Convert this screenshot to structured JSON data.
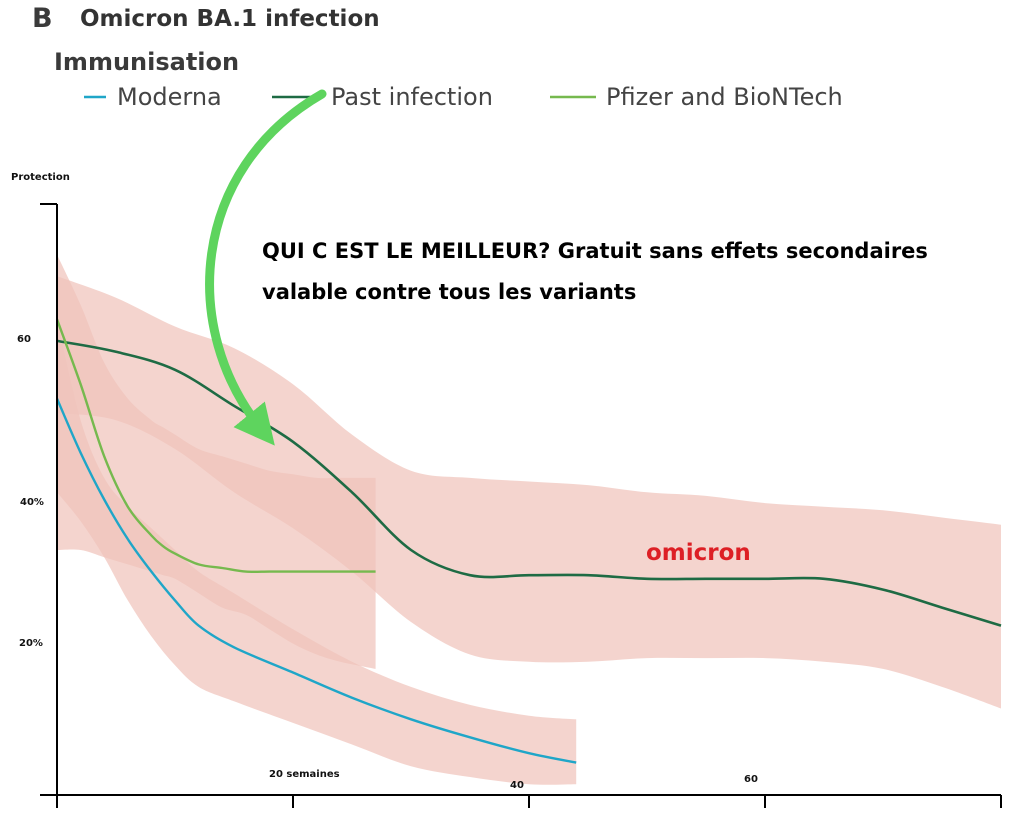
{
  "panel": {
    "letter": "B",
    "title": "Omicron BA.1 infection"
  },
  "legend": {
    "heading": "Immunisation",
    "placement": "top-left"
  },
  "annotation": {
    "line1": "QUI C EST LE MEILLEUR? Gratuit sans effets secondaires",
    "line2": "valable contre tous les variants",
    "arrow_color": "#5ed45e",
    "arrow_points_to": "Past infection"
  },
  "omicron_label": "omicron",
  "colors": {
    "band": "#f0c4bb",
    "axis": "#000000",
    "omicron_text": "#dd1f25"
  },
  "chart_data": {
    "type": "line",
    "title": "Omicron BA.1 infection",
    "xlabel": "",
    "ylabel": "Protection",
    "xlim": [
      0,
      80
    ],
    "ylim": [
      0,
      82
    ],
    "grid": false,
    "x_tick_labels": [
      {
        "x": 20,
        "label": "20 semaines"
      },
      {
        "x": 40,
        "label": "40"
      },
      {
        "x": 60,
        "label": "60"
      }
    ],
    "y_tick_labels": [
      {
        "y": 60,
        "label": "60"
      },
      {
        "y": 40,
        "label": "40%"
      },
      {
        "y": 20,
        "label": "20%"
      }
    ],
    "series": [
      {
        "name": "Moderna",
        "color": "#1fa6c8",
        "x": [
          0,
          2,
          4,
          6,
          8,
          10,
          12,
          15,
          20,
          25,
          30,
          35,
          40,
          44
        ],
        "y": [
          55,
          47.5,
          41,
          35.5,
          31,
          27,
          23.5,
          20.5,
          17,
          13.5,
          10.5,
          8,
          5.8,
          4.5
        ],
        "band_upper": [
          66,
          52,
          44,
          40,
          37,
          34,
          31,
          28,
          23,
          18.5,
          15,
          12.5,
          11,
          10.5
        ],
        "band_lower": [
          42,
          38,
          33,
          27,
          22,
          18,
          15,
          13,
          10,
          7,
          4,
          2.5,
          1.5,
          1.5
        ]
      },
      {
        "name": "Past infection",
        "color": "#1e6b44",
        "x": [
          0,
          5,
          10,
          15,
          20,
          25,
          30,
          35,
          40,
          45,
          50,
          55,
          60,
          65,
          70,
          75,
          80
        ],
        "y": [
          63,
          61.5,
          59,
          54,
          49,
          42,
          34,
          30.5,
          30.5,
          30.5,
          30,
          30,
          30,
          30,
          28.5,
          26,
          23.5
        ],
        "band_upper": [
          72,
          69,
          65,
          62,
          57,
          50,
          45,
          44,
          43.5,
          43,
          42,
          41.5,
          40.5,
          40,
          39.5,
          38.5,
          37.5
        ],
        "band_lower": [
          53,
          52,
          48,
          42,
          37,
          31,
          24,
          19.5,
          18.5,
          18.5,
          19,
          19,
          19,
          18.5,
          17.5,
          15,
          12
        ]
      },
      {
        "name": "Pfizer and BioNTech",
        "color": "#76b94e",
        "x": [
          0,
          2,
          4,
          6,
          8,
          9,
          10,
          12,
          14,
          16,
          18,
          20,
          22,
          24,
          27
        ],
        "y": [
          66,
          57,
          47,
          40,
          36,
          34.5,
          33.5,
          32,
          31.5,
          31,
          31,
          31,
          31,
          31,
          31
        ],
        "band_upper": [
          75,
          68,
          60,
          55,
          52,
          51,
          50,
          48,
          47,
          46,
          45,
          44.5,
          44,
          44,
          44
        ],
        "band_lower": [
          34,
          34,
          33,
          32,
          31,
          30.5,
          30,
          28,
          26,
          25,
          23,
          21,
          19.5,
          18.5,
          17.5
        ]
      }
    ]
  }
}
